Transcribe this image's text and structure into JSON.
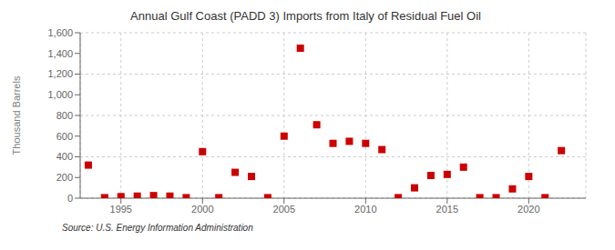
{
  "chart_data": {
    "type": "scatter",
    "title": "Annual Gulf Coast (PADD 3) Imports from Italy of Residual Fuel Oil",
    "ylabel": "Thousand Barrels",
    "source": "Source: U.S. Energy Information Administration",
    "x": [
      1993,
      1994,
      1995,
      1996,
      1997,
      1998,
      1999,
      2000,
      2001,
      2002,
      2003,
      2004,
      2005,
      2006,
      2007,
      2008,
      2009,
      2010,
      2011,
      2012,
      2013,
      2014,
      2015,
      2016,
      2017,
      2018,
      2019,
      2020,
      2021,
      2022
    ],
    "values": [
      320,
      5,
      15,
      20,
      25,
      20,
      5,
      450,
      5,
      250,
      210,
      5,
      600,
      1450,
      710,
      530,
      550,
      530,
      470,
      5,
      100,
      220,
      230,
      300,
      5,
      5,
      90,
      210,
      5,
      460
    ],
    "color": "#cc0000",
    "marker": "square",
    "grid": true,
    "xlim": [
      1992.5,
      2023.5
    ],
    "xticks": [
      1995,
      2000,
      2005,
      2010,
      2015,
      2020
    ],
    "ylim": [
      0,
      1600
    ],
    "yticks": [
      0,
      200,
      400,
      600,
      800,
      {
        "value": 1000,
        "label": "1,000"
      },
      {
        "value": 1200,
        "label": "1,200"
      },
      {
        "value": 1400,
        "label": "1,400"
      },
      {
        "value": 1600,
        "label": "1,600"
      }
    ]
  }
}
